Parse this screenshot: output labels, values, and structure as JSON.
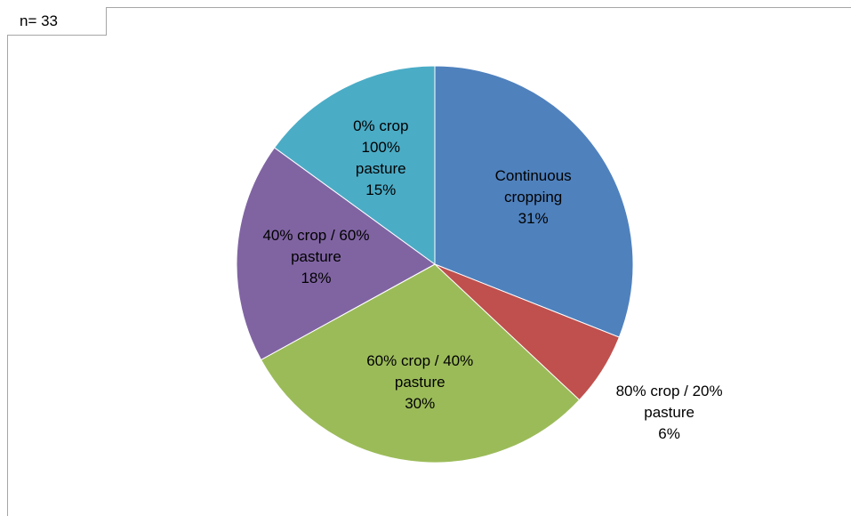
{
  "chart_data": {
    "type": "pie",
    "annotation": "n= 33",
    "categories": [
      "Continuous cropping",
      "80% crop / 20% pasture",
      "60% crop / 40% pasture",
      "40% crop / 60% pasture",
      "0% crop 100% pasture"
    ],
    "values": [
      31,
      6,
      30,
      18,
      15
    ],
    "value_labels": [
      "31%",
      "6%",
      "30%",
      "18%",
      "15%"
    ],
    "colors": [
      "#4f81bd",
      "#c0504d",
      "#9bbb59",
      "#8064a2",
      "#4bacc6"
    ]
  }
}
